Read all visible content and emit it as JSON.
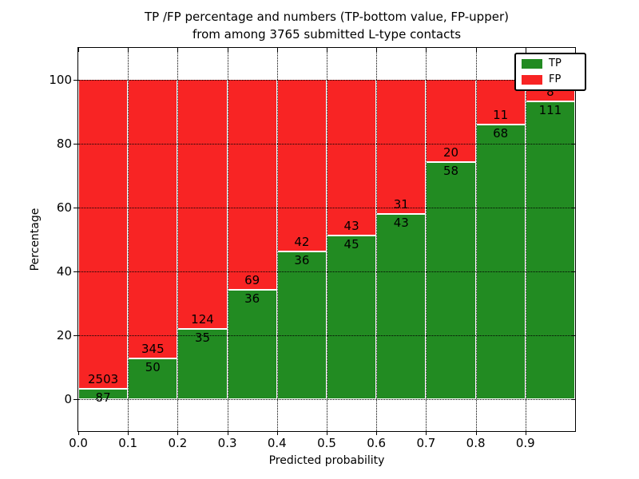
{
  "title": {
    "line1": "TP /FP percentage and numbers (TP-bottom value, FP-upper)",
    "line2": "from among 3765 submitted L-type contacts"
  },
  "chart_data": {
    "type": "bar",
    "subtype": "stacked-percentage",
    "title": "TP /FP percentage and numbers (TP-bottom value, FP-upper)\nfrom among 3765 submitted L-type contacts",
    "xlabel": "Predicted probability",
    "ylabel": "Percentage",
    "total_contacts": 3765,
    "bin_width": 0.1,
    "bin_starts": [
      0.0,
      0.1,
      0.2,
      0.3,
      0.4,
      0.5,
      0.6,
      0.7,
      0.8,
      0.9
    ],
    "x_tick_labels": [
      "0.0",
      "0.1",
      "0.2",
      "0.3",
      "0.4",
      "0.5",
      "0.6",
      "0.7",
      "0.8",
      "0.9"
    ],
    "y_ticks": [
      0,
      20,
      40,
      60,
      80,
      100
    ],
    "xlim": [
      0.0,
      1.0
    ],
    "ylim": [
      -10,
      110
    ],
    "grid": "dotted",
    "legend_position": "upper right",
    "series": [
      {
        "name": "TP",
        "color": "#228b22",
        "values": [
          87,
          50,
          35,
          36,
          36,
          45,
          43,
          58,
          68,
          111
        ]
      },
      {
        "name": "FP",
        "color": "#f82424",
        "values": [
          2503,
          345,
          124,
          69,
          42,
          43,
          31,
          20,
          11,
          8
        ]
      }
    ],
    "tp_percent_by_bin": [
      3.36,
      12.66,
      22.01,
      34.29,
      46.15,
      51.14,
      58.11,
      74.36,
      86.08,
      93.28
    ]
  },
  "colors": {
    "tp": "#228b22",
    "fp": "#f82424",
    "frame": "#000000",
    "background": "#ffffff"
  }
}
